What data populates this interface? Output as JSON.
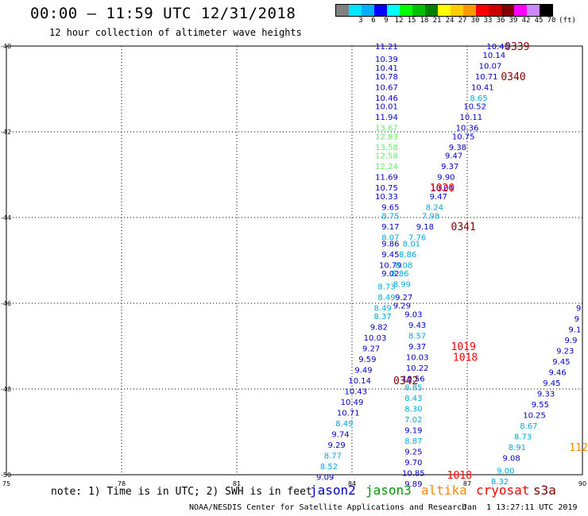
{
  "header": {
    "title": "00:00 – 11:59 UTC 12/31/2018",
    "subtitle": "12 hour collection of altimeter wave heights"
  },
  "legend": {
    "unit": "(ft)",
    "swatches": [
      {
        "color": "#808080",
        "label": ""
      },
      {
        "color": "#00e5ff",
        "label": "3"
      },
      {
        "color": "#00b0ff",
        "label": "6"
      },
      {
        "color": "#0000ff",
        "label": "9"
      },
      {
        "color": "#00ffff",
        "label": "12"
      },
      {
        "color": "#00ff00",
        "label": "15"
      },
      {
        "color": "#00c000",
        "label": "18"
      },
      {
        "color": "#008000",
        "label": "21"
      },
      {
        "color": "#ffff00",
        "label": "24"
      },
      {
        "color": "#ffcc00",
        "label": "27"
      },
      {
        "color": "#ff9900",
        "label": "30"
      },
      {
        "color": "#ff0000",
        "label": "33"
      },
      {
        "color": "#cc0000",
        "label": "36"
      },
      {
        "color": "#800000",
        "label": "39"
      },
      {
        "color": "#ff00ff",
        "label": "42"
      },
      {
        "color": "#cc88ff",
        "label": "45"
      },
      {
        "color": "#000000",
        "label": "70"
      }
    ]
  },
  "map": {
    "lon_range": [
      75,
      90
    ],
    "lat_range": [
      -50,
      -40
    ],
    "x_ticks": [
      "75",
      "78",
      "81",
      "84",
      "87",
      "90"
    ],
    "y_ticks": [
      "-40",
      "-42",
      "-44",
      "-46",
      "-48",
      "-50"
    ],
    "grid": true
  },
  "colors": {
    "jason2": "#0000cc",
    "jason3": "#009900",
    "altika": "#ff8800",
    "cryosat": "#ff0000",
    "s3a": "#800000",
    "light_blue": "#00aadd",
    "light_green": "#66ee66"
  },
  "wave_heights": [
    {
      "lon": 84.9,
      "lat": -40.0,
      "text": "11.21",
      "c": "jason2"
    },
    {
      "lon": 84.9,
      "lat": -40.3,
      "text": "10.39",
      "c": "jason2"
    },
    {
      "lon": 84.9,
      "lat": -40.5,
      "text": "10.41",
      "c": "jason2"
    },
    {
      "lon": 84.9,
      "lat": -40.7,
      "text": "10.78",
      "c": "jason2"
    },
    {
      "lon": 84.9,
      "lat": -40.95,
      "text": "10.67",
      "c": "jason2"
    },
    {
      "lon": 84.9,
      "lat": -41.2,
      "text": "10.46",
      "c": "jason2"
    },
    {
      "lon": 84.9,
      "lat": -41.4,
      "text": "10.01",
      "c": "jason2"
    },
    {
      "lon": 84.9,
      "lat": -41.65,
      "text": "11.94",
      "c": "jason2"
    },
    {
      "lon": 84.9,
      "lat": -41.9,
      "text": "13.67",
      "c": "light_green"
    },
    {
      "lon": 84.9,
      "lat": -42.1,
      "text": "12.83",
      "c": "light_green"
    },
    {
      "lon": 84.9,
      "lat": -42.35,
      "text": "13.58",
      "c": "light_green"
    },
    {
      "lon": 84.9,
      "lat": -42.55,
      "text": "12.58",
      "c": "light_green"
    },
    {
      "lon": 84.9,
      "lat": -42.8,
      "text": "12.24",
      "c": "light_green"
    },
    {
      "lon": 84.9,
      "lat": -43.05,
      "text": "11.69",
      "c": "jason2"
    },
    {
      "lon": 84.9,
      "lat": -43.3,
      "text": "10.75",
      "c": "jason2"
    },
    {
      "lon": 84.9,
      "lat": -43.5,
      "text": "10.33",
      "c": "jason2"
    },
    {
      "lon": 85.0,
      "lat": -43.75,
      "text": "9.65",
      "c": "jason2"
    },
    {
      "lon": 85.0,
      "lat": -43.95,
      "text": "8.75",
      "c": "light_blue"
    },
    {
      "lon": 85.0,
      "lat": -44.2,
      "text": "9.17",
      "c": "jason2"
    },
    {
      "lon": 85.0,
      "lat": -44.45,
      "text": "8.07",
      "c": "light_blue"
    },
    {
      "lon": 85.0,
      "lat": -44.6,
      "text": "9.86",
      "c": "jason2"
    },
    {
      "lon": 85.0,
      "lat": -44.85,
      "text": "9.45",
      "c": "jason2"
    },
    {
      "lon": 85.0,
      "lat": -45.1,
      "text": "10.79",
      "c": "jason2"
    },
    {
      "lon": 85.0,
      "lat": -45.3,
      "text": "9.02",
      "c": "jason2"
    },
    {
      "lon": 84.9,
      "lat": -45.6,
      "text": "8.73",
      "c": "light_blue"
    },
    {
      "lon": 84.9,
      "lat": -45.85,
      "text": "8.49",
      "c": "light_blue"
    },
    {
      "lon": 84.8,
      "lat": -46.1,
      "text": "8.49",
      "c": "light_blue"
    },
    {
      "lon": 84.8,
      "lat": -46.3,
      "text": "8.37",
      "c": "light_blue"
    },
    {
      "lon": 84.7,
      "lat": -46.55,
      "text": "9.82",
      "c": "jason2"
    },
    {
      "lon": 84.6,
      "lat": -46.8,
      "text": "10.03",
      "c": "jason2"
    },
    {
      "lon": 84.5,
      "lat": -47.05,
      "text": "9.27",
      "c": "jason2"
    },
    {
      "lon": 84.4,
      "lat": -47.3,
      "text": "9.59",
      "c": "jason2"
    },
    {
      "lon": 84.3,
      "lat": -47.55,
      "text": "9.49",
      "c": "jason2"
    },
    {
      "lon": 84.2,
      "lat": -47.8,
      "text": "10.14",
      "c": "jason2"
    },
    {
      "lon": 84.1,
      "lat": -48.05,
      "text": "10.43",
      "c": "jason2"
    },
    {
      "lon": 84.0,
      "lat": -48.3,
      "text": "10.49",
      "c": "jason2"
    },
    {
      "lon": 83.9,
      "lat": -48.55,
      "text": "10.71",
      "c": "jason2"
    },
    {
      "lon": 83.8,
      "lat": -48.8,
      "text": "8.49",
      "c": "light_blue"
    },
    {
      "lon": 83.7,
      "lat": -49.05,
      "text": "9.74",
      "c": "jason2"
    },
    {
      "lon": 83.6,
      "lat": -49.3,
      "text": "9.29",
      "c": "jason2"
    },
    {
      "lon": 83.5,
      "lat": -49.55,
      "text": "8.77",
      "c": "light_blue"
    },
    {
      "lon": 83.4,
      "lat": -49.8,
      "text": "8.52",
      "c": "light_blue"
    },
    {
      "lon": 83.3,
      "lat": -50.05,
      "text": "9.09",
      "c": "jason2"
    },
    {
      "lon": 87.8,
      "lat": -40.0,
      "text": "10.43",
      "c": "jason2"
    },
    {
      "lon": 87.7,
      "lat": -40.2,
      "text": "10.14",
      "c": "jason2"
    },
    {
      "lon": 87.6,
      "lat": -40.45,
      "text": "10.07",
      "c": "jason2"
    },
    {
      "lon": 87.5,
      "lat": -40.7,
      "text": "10.71",
      "c": "jason2"
    },
    {
      "lon": 87.4,
      "lat": -40.95,
      "text": "10.41",
      "c": "jason2"
    },
    {
      "lon": 87.3,
      "lat": -41.2,
      "text": "8.65",
      "c": "light_blue"
    },
    {
      "lon": 87.2,
      "lat": -41.4,
      "text": "10.52",
      "c": "jason2"
    },
    {
      "lon": 87.1,
      "lat": -41.65,
      "text": "10.11",
      "c": "jason2"
    },
    {
      "lon": 87.0,
      "lat": -41.9,
      "text": "10.36",
      "c": "jason2"
    },
    {
      "lon": 86.9,
      "lat": -42.1,
      "text": "10.75",
      "c": "jason2"
    },
    {
      "lon": 86.75,
      "lat": -42.35,
      "text": "9.38",
      "c": "jason2"
    },
    {
      "lon": 86.65,
      "lat": -42.55,
      "text": "9.47",
      "c": "jason2"
    },
    {
      "lon": 86.55,
      "lat": -42.8,
      "text": "9.37",
      "c": "jason2"
    },
    {
      "lon": 86.45,
      "lat": -43.05,
      "text": "9.90",
      "c": "jason2"
    },
    {
      "lon": 86.35,
      "lat": -43.3,
      "text": "10.04",
      "c": "jason2"
    },
    {
      "lon": 86.25,
      "lat": -43.5,
      "text": "9.47",
      "c": "jason2"
    },
    {
      "lon": 86.15,
      "lat": -43.75,
      "text": "8.24",
      "c": "light_blue"
    },
    {
      "lon": 86.05,
      "lat": -43.95,
      "text": "7.98",
      "c": "light_blue"
    },
    {
      "lon": 85.9,
      "lat": -44.2,
      "text": "9.18",
      "c": "jason2"
    },
    {
      "lon": 85.7,
      "lat": -44.45,
      "text": "7.76",
      "c": "light_blue"
    },
    {
      "lon": 85.55,
      "lat": -44.6,
      "text": "8.01",
      "c": "light_blue"
    },
    {
      "lon": 85.45,
      "lat": -44.85,
      "text": "8.86",
      "c": "light_blue"
    },
    {
      "lon": 85.35,
      "lat": -45.1,
      "text": "8.08",
      "c": "light_blue"
    },
    {
      "lon": 85.25,
      "lat": -45.3,
      "text": "8.86",
      "c": "light_blue"
    },
    {
      "lon": 85.3,
      "lat": -45.55,
      "text": "8.99",
      "c": "light_blue"
    },
    {
      "lon": 85.35,
      "lat": -45.85,
      "text": "9.27",
      "c": "jason2"
    },
    {
      "lon": 85.3,
      "lat": -46.05,
      "text": "9.29",
      "c": "jason2"
    },
    {
      "lon": 85.6,
      "lat": -46.25,
      "text": "9.03",
      "c": "jason2"
    },
    {
      "lon": 85.7,
      "lat": -46.5,
      "text": "9.43",
      "c": "jason2"
    },
    {
      "lon": 85.7,
      "lat": -46.75,
      "text": "8.57",
      "c": "light_blue"
    },
    {
      "lon": 85.7,
      "lat": -47.0,
      "text": "9.37",
      "c": "jason2"
    },
    {
      "lon": 85.7,
      "lat": -47.25,
      "text": "10.03",
      "c": "jason2"
    },
    {
      "lon": 85.7,
      "lat": -47.5,
      "text": "10.22",
      "c": "jason2"
    },
    {
      "lon": 85.6,
      "lat": -47.75,
      "text": "10.56",
      "c": "jason2"
    },
    {
      "lon": 85.6,
      "lat": -47.95,
      "text": "8.85",
      "c": "light_blue"
    },
    {
      "lon": 85.6,
      "lat": -48.2,
      "text": "8.43",
      "c": "light_blue"
    },
    {
      "lon": 85.6,
      "lat": -48.45,
      "text": "8.30",
      "c": "light_blue"
    },
    {
      "lon": 85.6,
      "lat": -48.7,
      "text": "7.02",
      "c": "light_blue"
    },
    {
      "lon": 85.6,
      "lat": -48.95,
      "text": "9.19",
      "c": "jason2"
    },
    {
      "lon": 85.6,
      "lat": -49.2,
      "text": "8.87",
      "c": "light_blue"
    },
    {
      "lon": 85.6,
      "lat": -49.45,
      "text": "9.25",
      "c": "jason2"
    },
    {
      "lon": 85.6,
      "lat": -49.7,
      "text": "9.70",
      "c": "jason2"
    },
    {
      "lon": 85.6,
      "lat": -49.95,
      "text": "10.85",
      "c": "jason2"
    },
    {
      "lon": 85.6,
      "lat": -50.2,
      "text": "9.89",
      "c": "jason2"
    },
    {
      "lon": 89.9,
      "lat": -46.1,
      "text": "9",
      "c": "jason2"
    },
    {
      "lon": 89.85,
      "lat": -46.35,
      "text": "9",
      "c": "jason2"
    },
    {
      "lon": 89.8,
      "lat": -46.6,
      "text": "9.1",
      "c": "jason2"
    },
    {
      "lon": 89.7,
      "lat": -46.85,
      "text": "9.9",
      "c": "jason2"
    },
    {
      "lon": 89.55,
      "lat": -47.1,
      "text": "9.23",
      "c": "jason2"
    },
    {
      "lon": 89.45,
      "lat": -47.35,
      "text": "9.45",
      "c": "jason2"
    },
    {
      "lon": 89.35,
      "lat": -47.6,
      "text": "9.46",
      "c": "jason2"
    },
    {
      "lon": 89.2,
      "lat": -47.85,
      "text": "9.45",
      "c": "jason2"
    },
    {
      "lon": 89.05,
      "lat": -48.1,
      "text": "9.33",
      "c": "jason2"
    },
    {
      "lon": 88.9,
      "lat": -48.35,
      "text": "9.55",
      "c": "jason2"
    },
    {
      "lon": 88.75,
      "lat": -48.6,
      "text": "10.25",
      "c": "jason2"
    },
    {
      "lon": 88.6,
      "lat": -48.85,
      "text": "8.67",
      "c": "light_blue"
    },
    {
      "lon": 88.45,
      "lat": -49.1,
      "text": "8.73",
      "c": "light_blue"
    },
    {
      "lon": 88.3,
      "lat": -49.35,
      "text": "8.91",
      "c": "light_blue"
    },
    {
      "lon": 88.15,
      "lat": -49.6,
      "text": "9.08",
      "c": "jason2"
    },
    {
      "lon": 88.0,
      "lat": -49.9,
      "text": "9.00",
      "c": "light_blue"
    },
    {
      "lon": 87.85,
      "lat": -50.15,
      "text": "8.32",
      "c": "light_blue"
    }
  ],
  "pass_labels": [
    {
      "lon": 88.3,
      "lat": -40.0,
      "text": "0339",
      "c": "s3a"
    },
    {
      "lon": 88.2,
      "lat": -40.7,
      "text": "0340",
      "c": "s3a"
    },
    {
      "lon": 86.35,
      "lat": -43.3,
      "text": "1020",
      "c": "cryosat"
    },
    {
      "lon": 86.9,
      "lat": -44.2,
      "text": "0341",
      "c": "s3a"
    },
    {
      "lon": 86.9,
      "lat": -47.0,
      "text": "1019",
      "c": "cryosat"
    },
    {
      "lon": 86.95,
      "lat": -47.25,
      "text": "1018",
      "c": "cryosat"
    },
    {
      "lon": 85.4,
      "lat": -47.8,
      "text": "0342",
      "c": "s3a"
    },
    {
      "lon": 86.8,
      "lat": -50.0,
      "text": "1018",
      "c": "cryosat"
    },
    {
      "lon": 89.9,
      "lat": -49.35,
      "text": "112",
      "c": "altika"
    }
  ],
  "footer": {
    "note": "note: 1) Time is in UTC; 2) SWH is in feet",
    "satellites": [
      {
        "name": "jason2",
        "c": "jason2"
      },
      {
        "name": "jason3",
        "c": "jason3"
      },
      {
        "name": "altika",
        "c": "altika"
      },
      {
        "name": "cryosat",
        "c": "cryosat"
      },
      {
        "name": "s3a",
        "c": "s3a"
      }
    ],
    "credit": "NOAA/NESDIS Center for Satellite Applications and Research",
    "timestamp": "Jan  1 13:27:11 UTC 2019"
  }
}
